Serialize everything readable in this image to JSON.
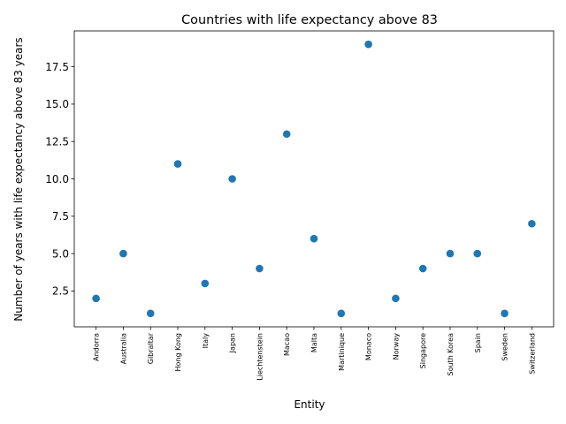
{
  "chart_data": {
    "type": "scatter",
    "title": "Countries with life expectancy above 83",
    "xlabel": "Entity",
    "ylabel": "Number of years with life expectancy above 83 years",
    "categories": [
      "Andorra",
      "Australia",
      "Gibraltar",
      "Hong Kong",
      "Italy",
      "Japan",
      "Liechtenstein",
      "Macao",
      "Malta",
      "Martinique",
      "Monaco",
      "Norway",
      "Singapore",
      "South Korea",
      "Spain",
      "Sweden",
      "Switzerland"
    ],
    "values": [
      2,
      5,
      1,
      11,
      3,
      10,
      4,
      13,
      6,
      1,
      19,
      2,
      4,
      5,
      5,
      1,
      7
    ],
    "yticks": [
      2.5,
      5.0,
      7.5,
      10.0,
      12.5,
      15.0,
      17.5
    ],
    "ytick_labels": [
      "2.5",
      "5.0",
      "7.5",
      "10.0",
      "12.5",
      "15.0",
      "17.5"
    ],
    "ylim": [
      0.1,
      19.9
    ],
    "grid": false,
    "color": "#1f77b4"
  }
}
